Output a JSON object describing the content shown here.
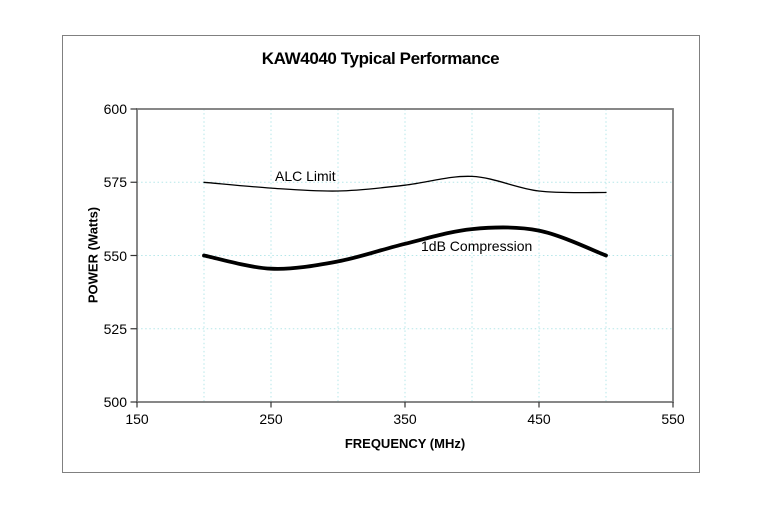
{
  "chart_data": {
    "type": "line",
    "title": "KAW4040 Typical Performance",
    "xlabel": "FREQUENCY (MHz)",
    "ylabel": "POWER (Watts)",
    "xlim": [
      150,
      550
    ],
    "ylim": [
      500,
      600
    ],
    "x_ticks": [
      150,
      250,
      350,
      450,
      550
    ],
    "y_ticks": [
      600,
      575,
      550,
      525,
      500
    ],
    "x_gridlines": [
      200,
      250,
      300,
      350,
      400,
      450,
      500
    ],
    "y_gridlines": [
      575,
      550,
      525
    ],
    "grid_on": true,
    "grid_style": "dotted",
    "grid_color": "#b5e7e9",
    "axis_color": "#7a7a7a",
    "tick_color": "#333333",
    "line_color": "#000000",
    "legend_position": "inline-labels",
    "smoothed": true,
    "series": [
      {
        "name": "ALC Limit",
        "label": "ALC Limit",
        "stroke_width": 1.3,
        "x": [
          200,
          250,
          300,
          350,
          400,
          450,
          500
        ],
        "y": [
          575,
          573,
          572,
          574,
          577,
          572,
          571.5
        ]
      },
      {
        "name": "1dB Compression",
        "label": "1dB Compression",
        "stroke_width": 3.8,
        "x": [
          200,
          250,
          300,
          350,
          400,
          450,
          500
        ],
        "y": [
          550,
          545.5,
          548,
          554,
          559,
          558.5,
          550
        ]
      }
    ]
  }
}
